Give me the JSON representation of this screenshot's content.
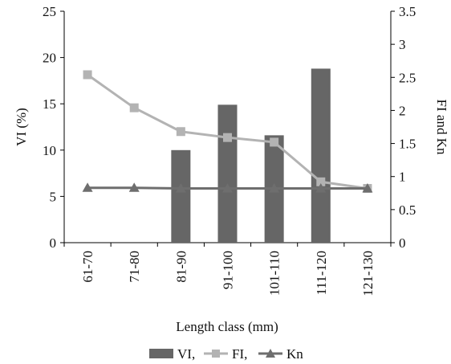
{
  "chart_data": {
    "type": "bar",
    "categories": [
      "61-70",
      "71-80",
      "81-90",
      "91-100",
      "101-110",
      "111-120",
      "121-130"
    ],
    "xlabel": "Length class (mm)",
    "ylabel": "VI (%)",
    "y2label": "FI and Kn",
    "ylim": [
      0,
      25
    ],
    "y2lim": [
      0,
      3.5
    ],
    "yticks": [
      "0",
      "5",
      "10",
      "15",
      "20",
      "25"
    ],
    "y2ticks": [
      "0",
      "0.5",
      "1",
      "1.5",
      "2",
      "2.5",
      "3",
      "3.5"
    ],
    "legend_position": "bottom",
    "series": [
      {
        "name": "VI,",
        "type": "bar",
        "axis": "left",
        "color": "#666666",
        "values": [
          null,
          null,
          10.0,
          14.9,
          11.6,
          18.8,
          null
        ]
      },
      {
        "name": "FI,",
        "type": "line",
        "marker": "square",
        "axis": "right",
        "color": "#b3b3b3",
        "values": [
          2.54,
          2.04,
          1.68,
          1.59,
          1.52,
          0.92,
          0.82
        ]
      },
      {
        "name": "Kn",
        "type": "line",
        "marker": "triangle",
        "axis": "right",
        "color": "#6e6e6e",
        "values": [
          0.83,
          0.83,
          0.82,
          0.82,
          0.82,
          0.82,
          0.82
        ]
      }
    ]
  }
}
